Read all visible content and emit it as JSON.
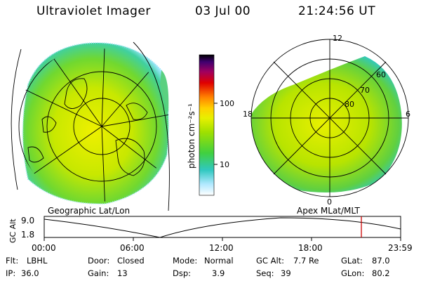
{
  "header": {
    "instrument": "Ultraviolet Imager",
    "date": "03 Jul 00",
    "time": "21:24:56 UT"
  },
  "left_panel": {
    "label": "Geographic Lat/Lon"
  },
  "right_panel": {
    "label": "Apex MLat/MLT",
    "mlt_labels": {
      "top": "12",
      "left": "18",
      "right": "6",
      "bottom": "0"
    },
    "lat_labels": [
      "60",
      "70",
      "80"
    ]
  },
  "colorbar": {
    "unit_label": "photon cm⁻²s⁻¹",
    "ticks": [
      "100",
      "10"
    ],
    "scale": "log",
    "colors": [
      "#000000",
      "#5a0080",
      "#9b005a",
      "#e00000",
      "#ff7000",
      "#ffd000",
      "#e8f000",
      "#a0e000",
      "#40d040",
      "#20c8c0",
      "#80e0ff",
      "#ffffff"
    ]
  },
  "timeline": {
    "ylabel": "GC Alt",
    "yticks": [
      "9.0",
      "1.8"
    ],
    "xticks": [
      "00:00",
      "06:00",
      "12:00",
      "18:00",
      "23:59"
    ],
    "marker_color": "#cc0000"
  },
  "status": {
    "flt_label": "Flt:",
    "flt": "LBHL",
    "ip_label": "IP:",
    "ip": "36.0",
    "door_label": "Door:",
    "door": "Closed",
    "gain_label": "Gain:",
    "gain": "13",
    "mode_label": "Mode:",
    "mode": "Normal",
    "dsp_label": "Dsp:",
    "dsp": "3.9",
    "gcalt_label": "GC Alt:",
    "gcalt": "7.7 Re",
    "seq_label": "Seq:",
    "seq": "39",
    "glat_label": "GLat:",
    "glat": "87.0",
    "glon_label": "GLon:",
    "glon": "80.2"
  }
}
